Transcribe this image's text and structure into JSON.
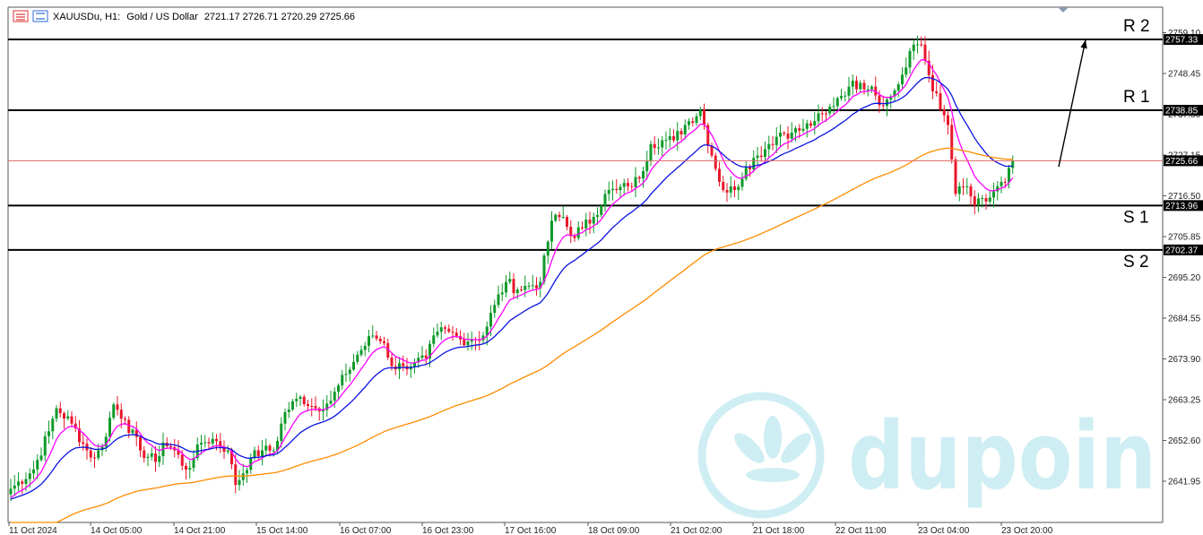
{
  "header": {
    "symbol": "XAUUSDu, H1:",
    "description": "Gold / US Dollar",
    "ohlc": "2721.17 2726.71 2720.29 2725.66"
  },
  "watermark": {
    "text": "dupoin"
  },
  "colors": {
    "bull": "#0e9a2a",
    "bear": "#e8182b",
    "ma_fast": "#ff00ff",
    "ma_mid": "#0a14e0",
    "ma_slow": "#ff8c00",
    "price_line": "#e06868",
    "level_line": "#000000",
    "watermark": "#7fd3e0"
  },
  "chart_data": {
    "type": "candlestick",
    "instrument": "XAUUSDu",
    "timeframe": "H1",
    "y_ticks": [
      2759.1,
      2748.45,
      2737.8,
      2727.15,
      2716.5,
      2705.85,
      2695.2,
      2684.55,
      2673.9,
      2663.25,
      2652.6,
      2641.95
    ],
    "y_tick_labels": [
      "2759.10",
      "2748.45",
      "2737.80",
      "2727.15",
      "2716.50",
      "2705.85",
      "2695.20",
      "2684.55",
      "2673.90",
      "2663.25",
      "2652.60",
      "2641.95"
    ],
    "x_tick_labels": [
      "11 Oct 2024",
      "14 Oct 05:00",
      "14 Oct 21:00",
      "15 Oct 14:00",
      "16 Oct 07:00",
      "16 Oct 23:00",
      "17 Oct 16:00",
      "18 Oct 09:00",
      "21 Oct 02:00",
      "21 Oct 18:00",
      "22 Oct 11:00",
      "23 Oct 04:00",
      "23 Oct 20:00"
    ],
    "current_price": 2725.66,
    "current_price_label": "2725.66",
    "levels": [
      {
        "name": "R 2",
        "value": 2757.33,
        "label": "2757.33"
      },
      {
        "name": "R 1",
        "value": 2738.85,
        "label": "2738.85"
      },
      {
        "name": "S 1",
        "value": 2713.96,
        "label": "2713.96"
      },
      {
        "name": "S 2",
        "value": 2702.37,
        "label": "2702.37"
      }
    ],
    "trend_arrow": {
      "from_value": 2725.0,
      "to_value": 2757.0
    },
    "close_path": [
      [
        0,
        2640
      ],
      [
        6,
        2645
      ],
      [
        10,
        2655
      ],
      [
        12,
        2661
      ],
      [
        16,
        2657
      ],
      [
        20,
        2650
      ],
      [
        22,
        2648
      ],
      [
        24,
        2651
      ],
      [
        27,
        2662
      ],
      [
        30,
        2658
      ],
      [
        34,
        2650
      ],
      [
        38,
        2647
      ],
      [
        40,
        2652
      ],
      [
        43,
        2650
      ],
      [
        46,
        2645
      ],
      [
        48,
        2648
      ],
      [
        50,
        2652
      ],
      [
        53,
        2653
      ],
      [
        57,
        2650
      ],
      [
        59,
        2641
      ],
      [
        63,
        2648
      ],
      [
        66,
        2650
      ],
      [
        69,
        2650
      ],
      [
        72,
        2660
      ],
      [
        76,
        2664
      ],
      [
        80,
        2661
      ],
      [
        84,
        2663
      ],
      [
        88,
        2670
      ],
      [
        91,
        2675
      ],
      [
        95,
        2680
      ],
      [
        98,
        2678
      ],
      [
        100,
        2672
      ],
      [
        103,
        2672
      ],
      [
        106,
        2673
      ],
      [
        109,
        2674
      ],
      [
        112,
        2681
      ],
      [
        115,
        2681
      ],
      [
        118,
        2679
      ],
      [
        121,
        2679
      ],
      [
        124,
        2680
      ],
      [
        127,
        2688
      ],
      [
        130,
        2694
      ],
      [
        133,
        2692
      ],
      [
        136,
        2693
      ],
      [
        139,
        2694
      ],
      [
        142,
        2710
      ],
      [
        145,
        2711
      ],
      [
        147,
        2706
      ],
      [
        150,
        2708
      ],
      [
        153,
        2711
      ],
      [
        156,
        2717
      ],
      [
        159,
        2718
      ],
      [
        162,
        2719
      ],
      [
        165,
        2721
      ],
      [
        168,
        2730
      ],
      [
        171,
        2731
      ],
      [
        174,
        2731
      ],
      [
        177,
        2735
      ],
      [
        181,
        2739
      ],
      [
        184,
        2727
      ],
      [
        187,
        2718
      ],
      [
        190,
        2718
      ],
      [
        193,
        2724
      ],
      [
        196,
        2727
      ],
      [
        199,
        2730
      ],
      [
        202,
        2733
      ],
      [
        205,
        2733
      ],
      [
        208,
        2734
      ],
      [
        211,
        2736
      ],
      [
        214,
        2738
      ],
      [
        217,
        2742
      ],
      [
        220,
        2745
      ],
      [
        223,
        2746
      ],
      [
        226,
        2745
      ],
      [
        229,
        2740
      ],
      [
        232,
        2744
      ],
      [
        235,
        2750
      ],
      [
        237,
        2756
      ],
      [
        239,
        2756
      ],
      [
        241,
        2748
      ],
      [
        244,
        2739
      ],
      [
        246,
        2735
      ],
      [
        248,
        2717
      ],
      [
        251,
        2719
      ],
      [
        253,
        2714
      ],
      [
        256,
        2715
      ],
      [
        259,
        2719
      ],
      [
        261,
        2720
      ],
      [
        263,
        2725.66
      ]
    ]
  }
}
